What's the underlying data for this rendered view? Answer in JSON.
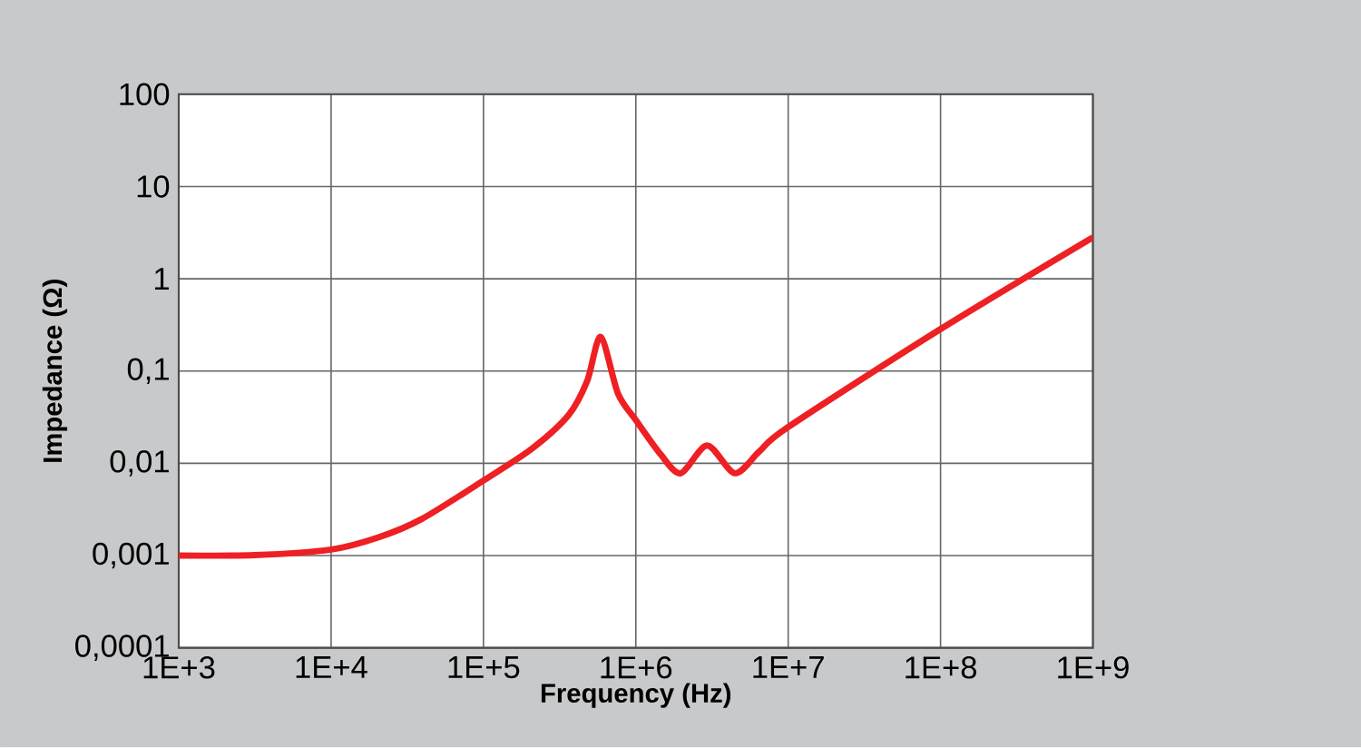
{
  "chart_data": {
    "type": "line",
    "xlabel": "Frequency (Hz)",
    "ylabel": "Impedance (Ω)",
    "log": "xy",
    "grid": true,
    "marker": "none",
    "line_style": "solid",
    "xlim": [
      1000,
      1000000000
    ],
    "ylim": [
      0.0001,
      100
    ],
    "xticks": [
      {
        "value": 1000,
        "label": "1E+3"
      },
      {
        "value": 10000,
        "label": "1E+4"
      },
      {
        "value": 100000,
        "label": "1E+5"
      },
      {
        "value": 1000000,
        "label": "1E+6"
      },
      {
        "value": 10000000,
        "label": "1E+7"
      },
      {
        "value": 100000000,
        "label": "1E+8"
      },
      {
        "value": 1000000000,
        "label": "1E+9"
      }
    ],
    "yticks": [
      {
        "value": 0.0001,
        "label": "0,0001"
      },
      {
        "value": 0.001,
        "label": "0,001"
      },
      {
        "value": 0.01,
        "label": "0,01"
      },
      {
        "value": 0.1,
        "label": "0,1"
      },
      {
        "value": 1,
        "label": "1"
      },
      {
        "value": 10,
        "label": "10"
      },
      {
        "value": 100,
        "label": "100"
      }
    ],
    "series": [
      {
        "color": "#ee2024",
        "x": [
          1000,
          3160,
          10000,
          20400,
          39200,
          100000,
          209000,
          363000,
          479000,
          589000,
          764000,
          1010000,
          1460000,
          1970000,
          2940000,
          4460000,
          6460000,
          10000000,
          100000000,
          977000000
        ],
        "values": [
          0.001,
          0.00101,
          0.00116,
          0.00157,
          0.00248,
          0.0065,
          0.0145,
          0.0335,
          0.0776,
          0.234,
          0.057,
          0.0287,
          0.0124,
          0.0078,
          0.0156,
          0.0078,
          0.0134,
          0.0247,
          0.285,
          2.75
        ]
      }
    ]
  }
}
